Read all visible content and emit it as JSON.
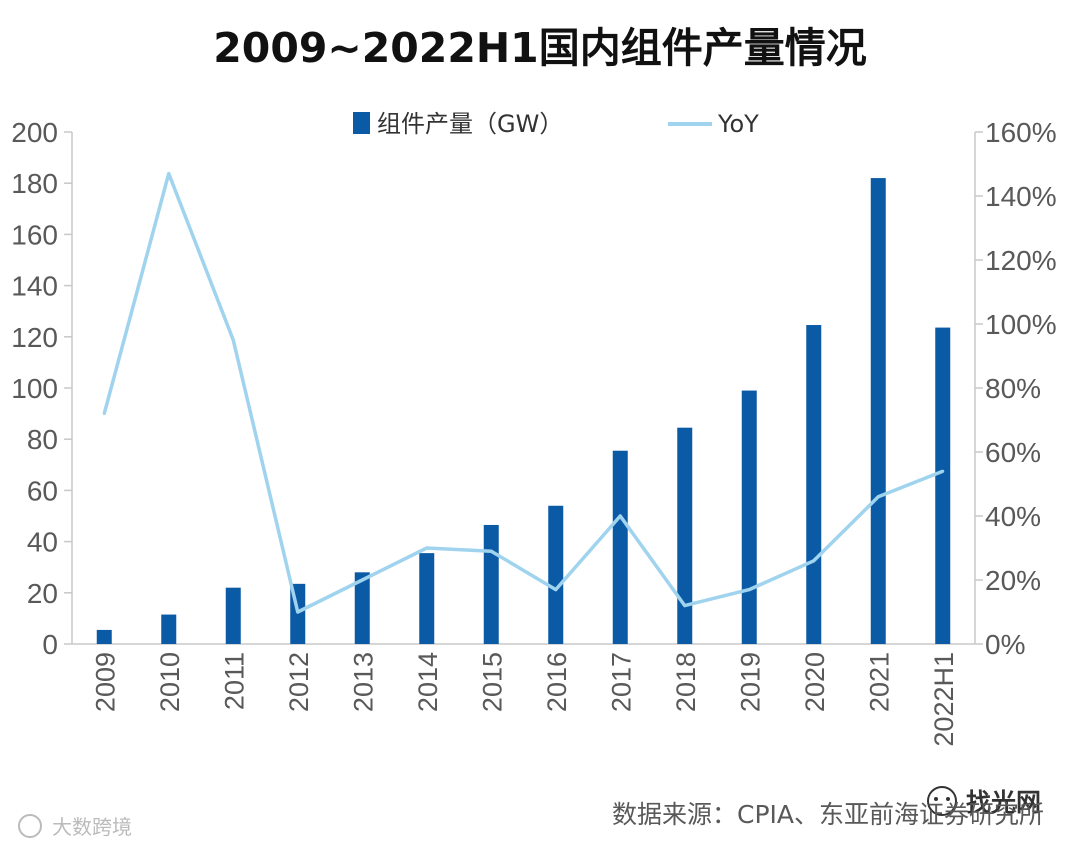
{
  "chart_data": {
    "type": "bar+line",
    "title": "2009~2022H1国内组件产量情况",
    "categories": [
      "2009",
      "2010",
      "2011",
      "2012",
      "2013",
      "2014",
      "2015",
      "2016",
      "2017",
      "2018",
      "2019",
      "2020",
      "2021",
      "2022H1"
    ],
    "series": [
      {
        "name": "组件产量（GW）",
        "type": "bar",
        "axis": "left",
        "values": [
          5.5,
          11.5,
          22,
          23.5,
          28,
          35.5,
          46.5,
          54,
          75.5,
          84.5,
          99,
          124.6,
          182,
          123.6
        ]
      },
      {
        "name": "YoY",
        "type": "line",
        "axis": "right",
        "values": [
          72,
          147,
          95,
          10,
          20,
          30,
          29,
          17,
          40,
          12,
          17,
          26,
          46,
          54
        ]
      }
    ],
    "y_left": {
      "min": 0,
      "max": 200,
      "ticks": [
        0,
        20,
        40,
        60,
        80,
        100,
        120,
        140,
        160,
        180,
        200
      ]
    },
    "y_right": {
      "min": 0,
      "max": 160,
      "ticks": [
        "0%",
        "20%",
        "40%",
        "60%",
        "80%",
        "100%",
        "120%",
        "140%",
        "160%"
      ]
    },
    "legend": {
      "placement": "top",
      "bar_label": "组件产量（GW）",
      "line_label": "YoY"
    },
    "colors": {
      "bar": "#0b5aa6",
      "line": "#9fd3ee",
      "axis": "#c8c8c8"
    },
    "source": "数据来源：CPIA、东亚前海证券研究所",
    "watermark_left": "大数跨境",
    "watermark_right": "找光网"
  }
}
